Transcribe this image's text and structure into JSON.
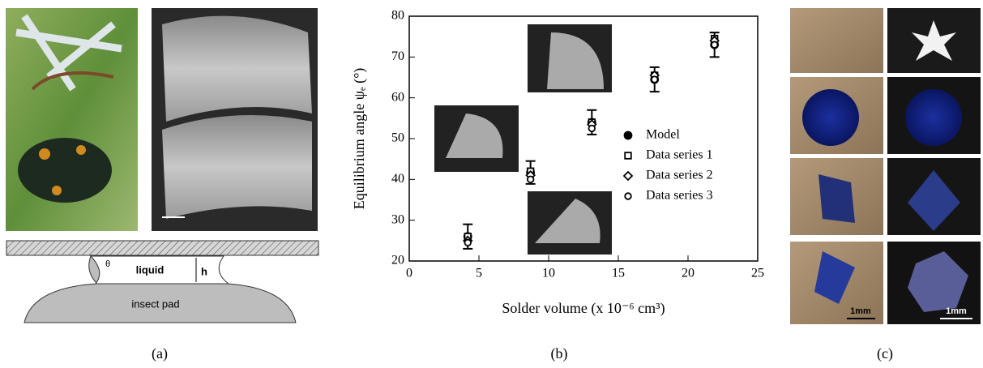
{
  "figure": {
    "panels": {
      "a": {
        "label": "(a)",
        "diagram": {
          "angle": "θ",
          "liquid": "liquid",
          "gap": "h",
          "pad": "insect pad"
        }
      },
      "b": {
        "label": "(b)"
      },
      "c": {
        "label": "(c)",
        "scale_bars": [
          "1mm",
          "1mm"
        ]
      }
    }
  },
  "chart_data": {
    "type": "scatter",
    "x_label": "Solder volume (x 10⁻⁶ cm³)",
    "y_label": "Equilibrium angle ψₑ (°)",
    "x": [
      4.2,
      8.7,
      13.1,
      17.6,
      21.9
    ],
    "series": [
      {
        "name": "Model",
        "marker": "filled-circle",
        "color": "#000000",
        "values": [
          26,
          41.7,
          54,
          64.5,
          73
        ],
        "errors": [
          3,
          2.8,
          3,
          3,
          3
        ]
      },
      {
        "name": "Data series 1",
        "marker": "square",
        "color": "#000000",
        "values": [
          26,
          42,
          54,
          65.5,
          74.5
        ]
      },
      {
        "name": "Data series 2",
        "marker": "diamond",
        "color": "#000000",
        "values": [
          25,
          41,
          53.5,
          65.5,
          74
        ]
      },
      {
        "name": "Data series 3",
        "marker": "open-circle",
        "color": "#000000",
        "values": [
          24.5,
          40,
          52.5,
          64.5,
          73
        ]
      }
    ],
    "xlim": [
      0,
      25
    ],
    "xticks": [
      0,
      5,
      10,
      15,
      20,
      25
    ],
    "ylim": [
      20,
      80
    ],
    "yticks": [
      20,
      30,
      40,
      50,
      60,
      70,
      80
    ],
    "grid": false
  }
}
